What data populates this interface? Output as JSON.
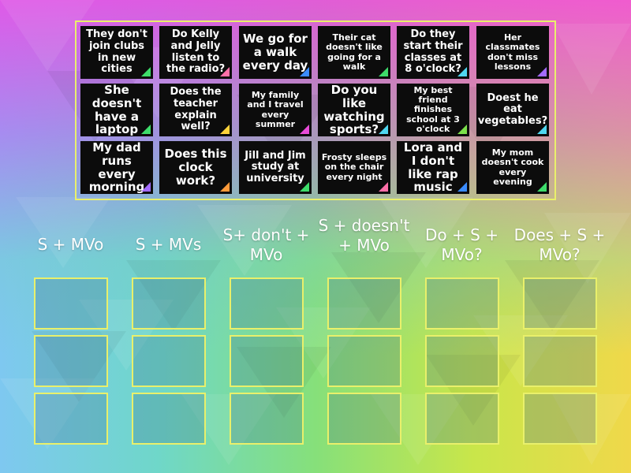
{
  "colors": {
    "frame": "#e9f06b",
    "card": "#0c0c0c"
  },
  "cards": [
    {
      "text": "They don't join clubs in new cities",
      "size": "m",
      "corner": "#3ddc6a"
    },
    {
      "text": "Do Kelly and Jelly listen to the radio?",
      "size": "m",
      "corner": "#ff6fa8"
    },
    {
      "text": "We go for a walk every day",
      "size": "l",
      "corner": "#3a8cff"
    },
    {
      "text": "Their cat doesn't like going for a walk",
      "size": "s",
      "corner": "#3ddc6a"
    },
    {
      "text": "Do they start their classes at 8 o'clock?",
      "size": "m",
      "corner": "#4fd7f0"
    },
    {
      "text": "Her classmates don't miss lessons",
      "size": "s",
      "corner": "#a36bff"
    },
    {
      "text": "She doesn't have a laptop",
      "size": "l",
      "corner": "#3ddc6a"
    },
    {
      "text": "Does the teacher explain well?",
      "size": "m",
      "corner": "#ffd23a"
    },
    {
      "text": "My family and I travel every summer",
      "size": "s",
      "corner": "#e84bd8"
    },
    {
      "text": "Do you like watching sports?",
      "size": "l",
      "corner": "#4fd7f0"
    },
    {
      "text": "My best friend finishes school at 3 o'clock",
      "size": "s",
      "corner": "#7be04a"
    },
    {
      "text": "Doest he eat vegetables?",
      "size": "m",
      "corner": "#4fd7f0"
    },
    {
      "text": "My dad runs every morning",
      "size": "l",
      "corner": "#a36bff"
    },
    {
      "text": "Does this clock work?",
      "size": "l",
      "corner": "#ff9a3a"
    },
    {
      "text": "Jill and Jim study at university",
      "size": "m",
      "corner": "#3ddc6a"
    },
    {
      "text": "Frosty sleeps on the chair every night",
      "size": "s",
      "corner": "#ff6fa8"
    },
    {
      "text": "Lora and I don't like rap music",
      "size": "l",
      "corner": "#3a8cff"
    },
    {
      "text": "My mom doesn't cook every evening",
      "size": "s",
      "corner": "#3ddc6a"
    }
  ],
  "columns": [
    {
      "header": "S + MVo"
    },
    {
      "header": "S + MVs"
    },
    {
      "header": "S+ don't + MVo"
    },
    {
      "header": "S + doesn't + MVo"
    },
    {
      "header": "Do + S + MVo?"
    },
    {
      "header": "Does + S + MVo?"
    }
  ]
}
